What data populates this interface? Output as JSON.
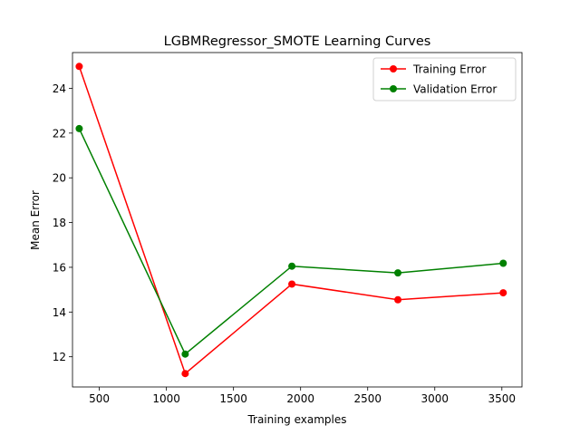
{
  "chart_data": {
    "type": "line",
    "title": "LGBMRegressor_SMOTE Learning Curves",
    "xlabel": "Training examples",
    "ylabel": "Mean Error",
    "xlim": [
      300,
      3650
    ],
    "ylim": [
      10.65,
      25.6
    ],
    "xticks": [
      500,
      1000,
      1500,
      2000,
      2500,
      3000,
      3500
    ],
    "yticks": [
      12,
      14,
      16,
      18,
      20,
      22,
      24
    ],
    "grid": false,
    "legend_position": "upper right",
    "series": [
      {
        "name": "Training Error",
        "color": "#ff0000",
        "marker": "circle",
        "x": [
          350,
          1140,
          1935,
          2725,
          3510
        ],
        "y": [
          24.98,
          11.25,
          15.25,
          14.55,
          14.86
        ]
      },
      {
        "name": "Validation Error",
        "color": "#008000",
        "marker": "circle",
        "x": [
          350,
          1140,
          1935,
          2725,
          3510
        ],
        "y": [
          22.2,
          12.12,
          16.05,
          15.75,
          16.18
        ]
      }
    ]
  }
}
